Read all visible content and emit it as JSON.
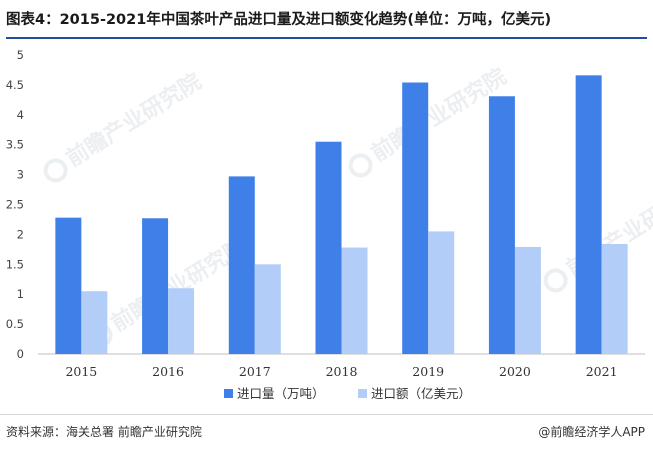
{
  "header": {
    "title": "图表4：2015-2021年中国茶叶产品进口量及进口额变化趋势(单位：万吨，亿美元)"
  },
  "footer": {
    "source": "资料来源：海关总署 前瞻产业研究院",
    "brand": "@前瞻经济学人APP"
  },
  "watermark": {
    "text": "前瞻产业研究院"
  },
  "colors": {
    "volume": "#3f80e8",
    "value": "#b2cdf7",
    "accent": "#1f4e9c"
  },
  "chart_data": {
    "type": "bar",
    "categories": [
      "2015",
      "2016",
      "2017",
      "2018",
      "2019",
      "2020",
      "2021"
    ],
    "series": [
      {
        "name": "进口量（万吨）",
        "values": [
          2.28,
          2.27,
          2.97,
          3.55,
          4.54,
          4.31,
          4.66
        ]
      },
      {
        "name": "进口额（亿美元）",
        "values": [
          1.05,
          1.1,
          1.5,
          1.78,
          2.05,
          1.79,
          1.84
        ]
      }
    ],
    "ylim": [
      0,
      5
    ],
    "yticks": [
      "0",
      "0.5",
      "1",
      "1.5",
      "2",
      "2.5",
      "3",
      "3.5",
      "4",
      "4.5",
      "5"
    ],
    "grid": false,
    "legend": "bottom-center"
  }
}
